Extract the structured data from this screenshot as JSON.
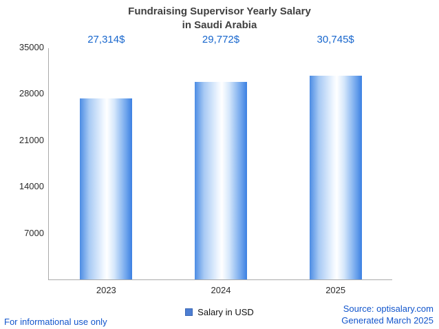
{
  "chart_data": {
    "type": "bar",
    "title_lines": [
      "Fundraising Supervisor Yearly Salary",
      "in Saudi Arabia"
    ],
    "categories": [
      "2023",
      "2024",
      "2025"
    ],
    "series": [
      {
        "name": "Salary in USD",
        "values": [
          27314,
          29772,
          30745
        ]
      }
    ],
    "value_labels": [
      "27,314$",
      "29,772$",
      "30,745$"
    ],
    "xlabel": "",
    "ylabel": "",
    "ylim": [
      0,
      35000
    ],
    "yticks": [
      7000,
      14000,
      21000,
      28000,
      35000
    ],
    "grid": false,
    "legend_position": "bottom-center"
  },
  "legend": {
    "label": "Salary in USD"
  },
  "footer": {
    "left": "For informational use only",
    "source": "Source: optisalary.com",
    "generated": "Generated March 2025"
  },
  "colors": {
    "title": "#404040",
    "value_label": "#1766cd",
    "link": "#1155cc",
    "axis": "#a9a9a9",
    "bar_edge": "#4c8ce4",
    "bar_edge2": "#3b80e2",
    "bar_mid": "#f2f8ff",
    "legend_swatch": "#4d7ed2"
  }
}
